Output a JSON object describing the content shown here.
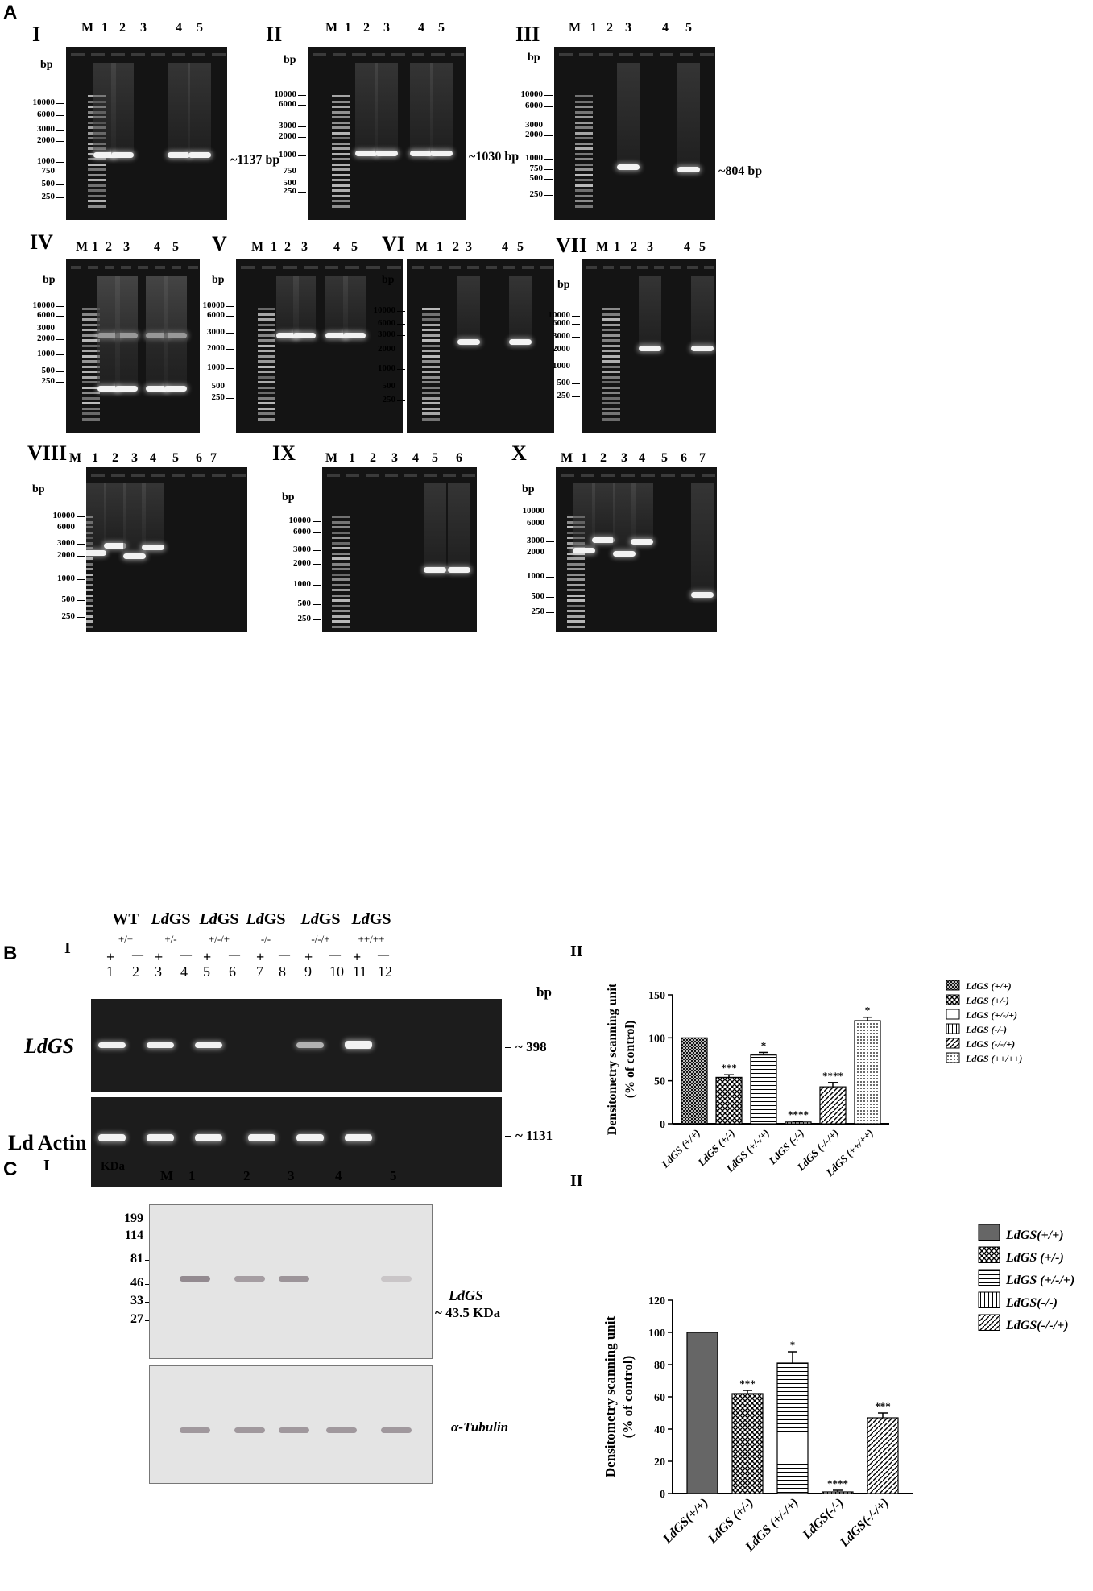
{
  "panel_A": {
    "letter": "A",
    "gels": [
      {
        "id": "I",
        "roman": "I",
        "lanes": [
          "M",
          "1",
          "2",
          "3",
          "4",
          "5"
        ],
        "bp": "bp",
        "ladder": [
          "10000",
          "6000",
          "3000",
          "2000",
          "1000",
          "750",
          "500",
          "250"
        ],
        "size": "~1137 bp"
      },
      {
        "id": "II",
        "roman": "II",
        "lanes": [
          "M",
          "1",
          "2",
          "3",
          "4",
          "5"
        ],
        "bp": "bp",
        "ladder": [
          "10000",
          "6000",
          "3000",
          "2000",
          "1000",
          "750",
          "500",
          "250"
        ],
        "size": "~1030 bp"
      },
      {
        "id": "III",
        "roman": "III",
        "lanes": [
          "M",
          "1",
          "2",
          "3",
          "4",
          "5"
        ],
        "bp": "bp",
        "ladder": [
          "10000",
          "6000",
          "3000",
          "2000",
          "1000",
          "750",
          "500",
          "250"
        ],
        "size": "~804 bp"
      },
      {
        "id": "IV",
        "roman": "IV",
        "lanes": [
          "M",
          "1",
          "2",
          "3",
          "4",
          "5"
        ],
        "bp": "bp",
        "ladder": [
          "10000",
          "6000",
          "3000",
          "2000",
          "1000",
          "500",
          "250"
        ]
      },
      {
        "id": "V",
        "roman": "V",
        "lanes": [
          "M",
          "1",
          "2",
          "3",
          "4",
          "5"
        ],
        "bp": "bp",
        "ladder": [
          "10000",
          "6000",
          "3000",
          "2000",
          "1000",
          "500",
          "250"
        ]
      },
      {
        "id": "VI",
        "roman": "VI",
        "lanes": [
          "M",
          "1",
          "2",
          "3",
          "4",
          "5"
        ],
        "bp": "bp",
        "ladder": [
          "10000",
          "6000",
          "3000",
          "2000",
          "1000",
          "500",
          "250"
        ]
      },
      {
        "id": "VII",
        "roman": "VII",
        "lanes": [
          "M",
          "1",
          "2",
          "3",
          "4",
          "5"
        ],
        "bp": "bp",
        "ladder": [
          "10000",
          "6000",
          "3000",
          "2000",
          "1000",
          "500",
          "250"
        ]
      },
      {
        "id": "VIII",
        "roman": "VIII",
        "lanes": [
          "M",
          "1",
          "2",
          "3",
          "4",
          "5",
          "6",
          "7"
        ],
        "bp": "bp",
        "ladder": [
          "10000",
          "6000",
          "3000",
          "2000",
          "1000",
          "500",
          "250"
        ]
      },
      {
        "id": "IX",
        "roman": "IX",
        "lanes": [
          "M",
          "1",
          "2",
          "3",
          "4",
          "5",
          "6"
        ],
        "bp": "bp",
        "ladder": [
          "10000",
          "6000",
          "3000",
          "2000",
          "1000",
          "500",
          "250"
        ]
      },
      {
        "id": "X",
        "roman": "X",
        "lanes": [
          "M",
          "1",
          "2",
          "3",
          "4",
          "5",
          "6",
          "7"
        ],
        "bp": "bp",
        "ladder": [
          "10000",
          "6000",
          "3000",
          "2000",
          "1000",
          "500",
          "250"
        ]
      }
    ]
  },
  "panel_B": {
    "letter": "B",
    "sub_i": "I",
    "sub_ii": "II",
    "groups": [
      {
        "name": "WT",
        "genotype": "+/+"
      },
      {
        "name": "LdGS",
        "genotype": "+/-"
      },
      {
        "name": "LdGS",
        "genotype": "+/-/+"
      },
      {
        "name": "LdGS",
        "genotype": "-/-"
      },
      {
        "name": "LdGS",
        "genotype": "-/-/+"
      },
      {
        "name": "LdGS",
        "genotype": "++/++"
      }
    ],
    "signs": [
      "+",
      "—",
      "+",
      "—",
      "+",
      "—",
      "+",
      "—",
      "+",
      "—",
      "+",
      "—"
    ],
    "lane_numbers": [
      "1",
      "2",
      "3",
      "4",
      "5",
      "6",
      "7",
      "8",
      "9",
      "10",
      "11",
      "12"
    ],
    "bp": "bp",
    "row1_label": "LdGS",
    "row2_label": "Ld Actin",
    "row1_size": "~ 398",
    "row2_size": "~ 1131"
  },
  "panel_C": {
    "letter": "C",
    "sub_i": "I",
    "sub_ii": "II",
    "kda": "KDa",
    "lanes": [
      "M",
      "1",
      "2",
      "3",
      "4",
      "5"
    ],
    "markers": [
      "199",
      "114",
      "81",
      "46",
      "33",
      "27"
    ],
    "band_label": "LdGS",
    "band_size": "~ 43.5 KDa",
    "tubulin": "α-Tubulin"
  },
  "chart_data": [
    {
      "type": "bar",
      "ylabel": "Densitometry scanning unit (% of control)",
      "ylim": [
        0,
        150
      ],
      "yticks": [
        "0",
        "50",
        "100",
        "150"
      ],
      "categories": [
        "LdGS (+/+)",
        "LdGS (+/-)",
        "LdGS (+/-/+)",
        "LdGS (-/-)",
        "LdGS (-/-/+)",
        "LdGS (++/++)"
      ],
      "values": [
        100,
        54,
        80,
        2,
        43,
        120
      ],
      "errors": [
        0,
        3,
        3,
        1,
        5,
        4
      ],
      "significance": [
        "",
        "***",
        "*",
        "****",
        "****",
        "*"
      ],
      "legend": [
        "LdGS (+/+)",
        "LdGS (+/-)",
        "LdGS (+/-/+)",
        "LdGS (-/-)",
        "LdGS (-/-/+)",
        "LdGS (++/++)"
      ],
      "legend_position": "right"
    },
    {
      "type": "bar",
      "ylabel": "Densitometry scanning unit (% of control)",
      "ylim": [
        0,
        120
      ],
      "yticks": [
        "0",
        "20",
        "40",
        "60",
        "80",
        "100",
        "120"
      ],
      "categories": [
        "LdGS(+/+)",
        "LdGS (+/-)",
        "LdGS (+/-/+)",
        "LdGS(-/-)",
        "LdGS(-/-/+)"
      ],
      "values": [
        100,
        62,
        81,
        1,
        47
      ],
      "errors": [
        0,
        2,
        7,
        1,
        3
      ],
      "significance": [
        "",
        "***",
        "*",
        "****",
        "***"
      ],
      "legend": [
        "LdGS(+/+)",
        "LdGS (+/-)",
        "LdGS (+/-/+)",
        "LdGS(-/-)",
        "LdGS(-/-/+)"
      ],
      "legend_position": "right"
    }
  ]
}
